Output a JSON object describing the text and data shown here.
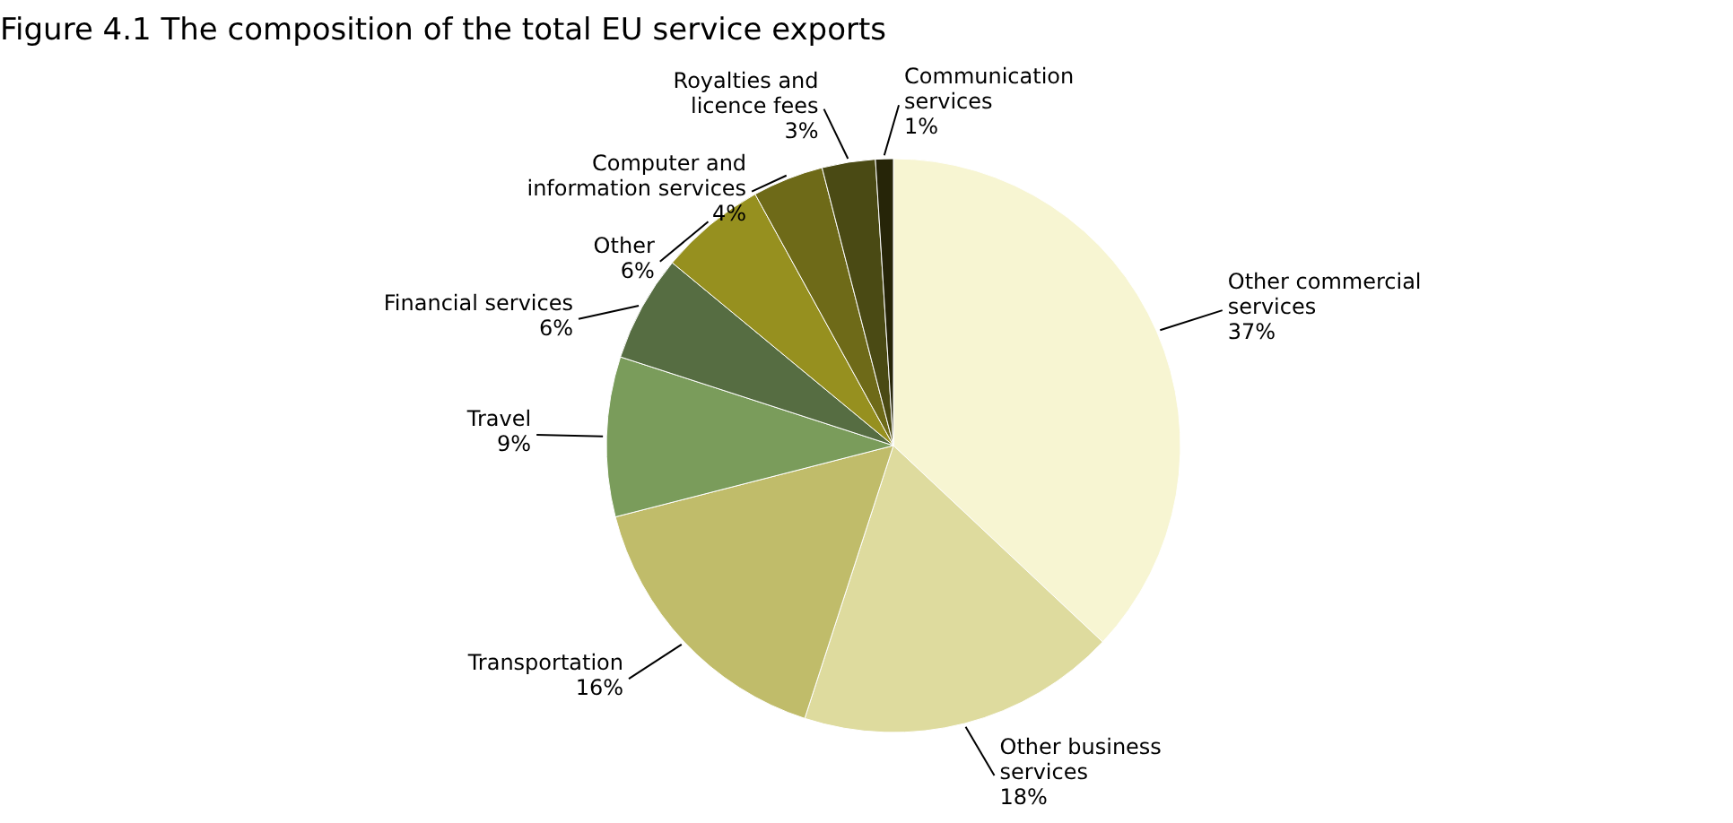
{
  "chart_data": {
    "type": "pie",
    "title": "Figure 4.1 The composition of the total EU service exports",
    "categories": [
      "Other commercial services",
      "Other business services",
      "Transportation",
      "Travel",
      "Financial services",
      "Other",
      "Computer and information services",
      "Royalties and licence fees",
      "Communication services"
    ],
    "values": [
      37,
      18,
      16,
      9,
      6,
      6,
      4,
      3,
      1
    ],
    "value_labels": [
      "37%",
      "18%",
      "16%",
      "9%",
      "6%",
      "6%",
      "4%",
      "3%",
      "1%"
    ],
    "colors": [
      "#f7f5d2",
      "#dedb9e",
      "#c0bc6a",
      "#7a9c5b",
      "#566d42",
      "#96901f",
      "#6e6a18",
      "#4a4a14",
      "#262508"
    ]
  }
}
